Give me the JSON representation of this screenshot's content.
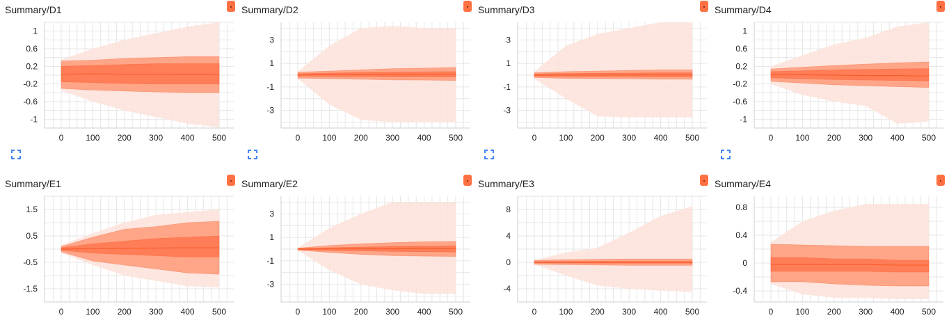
{
  "colors": {
    "accent": "#ff7043",
    "band_outer": "#fde3dc",
    "band_mid": "#ff9a7a",
    "band_inner": "#ff7a52",
    "line": "#f4511e",
    "grid": "#e6e6e6",
    "fit_icon": "#4285f4"
  },
  "icons": {
    "expand": "expand-icon",
    "fit": "fit-domain-icon"
  },
  "cards": [
    {
      "title": "Summary/D1",
      "yticks": [
        "1",
        "0.6",
        "0.2",
        "-0.2",
        "-0.6",
        "-1"
      ],
      "xticks": [
        "0",
        "100",
        "200",
        "300",
        "400",
        "500"
      ],
      "show_fit_icon": true
    },
    {
      "title": "Summary/D2",
      "yticks": [
        "3",
        "1",
        "-1",
        "-3"
      ],
      "xticks": [
        "0",
        "100",
        "200",
        "300",
        "400",
        "500"
      ],
      "show_fit_icon": true
    },
    {
      "title": "Summary/D3",
      "yticks": [
        "3",
        "1",
        "-1",
        "-3"
      ],
      "xticks": [
        "0",
        "100",
        "200",
        "300",
        "400",
        "500"
      ],
      "show_fit_icon": true
    },
    {
      "title": "Summary/D4",
      "yticks": [
        "1",
        "0.6",
        "0.2",
        "-0.2",
        "-0.6",
        "-1"
      ],
      "xticks": [
        "0",
        "100",
        "200",
        "300",
        "400",
        "500"
      ],
      "show_fit_icon": true
    },
    {
      "title": "Summary/E1",
      "yticks": [
        "1.5",
        "0.5",
        "-0.5",
        "-1.5"
      ],
      "xticks": [
        "0",
        "100",
        "200",
        "300",
        "400",
        "500"
      ],
      "show_fit_icon": false
    },
    {
      "title": "Summary/E2",
      "yticks": [
        "3",
        "1",
        "-1",
        "-3"
      ],
      "xticks": [
        "0",
        "100",
        "200",
        "300",
        "400",
        "500"
      ],
      "show_fit_icon": false
    },
    {
      "title": "Summary/E3",
      "yticks": [
        "8",
        "4",
        "0",
        "-4"
      ],
      "xticks": [
        "0",
        "100",
        "200",
        "300",
        "400",
        "500"
      ],
      "show_fit_icon": false
    },
    {
      "title": "Summary/E4",
      "yticks": [
        "0.8",
        "0.4",
        "0",
        "-0.4"
      ],
      "xticks": [
        "0",
        "100",
        "200",
        "300",
        "400",
        "500"
      ],
      "show_fit_icon": false
    }
  ],
  "chart_data": [
    {
      "type": "area",
      "title": "Summary/D1",
      "x": [
        0,
        100,
        200,
        300,
        400,
        500
      ],
      "ylim": [
        -1.2,
        1.2
      ],
      "bands": [
        {
          "name": "",
          "upper": [
            0.35,
            0.6,
            0.8,
            0.95,
            1.1,
            1.2
          ],
          "lower": [
            -0.35,
            -0.6,
            -0.8,
            -0.95,
            -1.1,
            -1.18
          ]
        },
        {
          "name": "",
          "upper": [
            0.32,
            0.34,
            0.38,
            0.4,
            0.42,
            0.42
          ],
          "lower": [
            -0.3,
            -0.34,
            -0.36,
            -0.38,
            -0.4,
            -0.4
          ]
        },
        {
          "name": "",
          "upper": [
            0.2,
            0.22,
            0.24,
            0.26,
            0.26,
            0.26
          ],
          "lower": [
            -0.15,
            -0.17,
            -0.19,
            -0.2,
            -0.2,
            -0.2
          ]
        }
      ],
      "median": [
        0.02,
        0.03,
        0.02,
        0.02,
        0.01,
        0.02
      ]
    },
    {
      "type": "area",
      "title": "Summary/D2",
      "x": [
        0,
        100,
        200,
        300,
        400,
        500
      ],
      "ylim": [
        -4.5,
        4.5
      ],
      "bands": [
        {
          "name": "",
          "upper": [
            0.3,
            2.5,
            4.0,
            4.2,
            4.0,
            4.0
          ],
          "lower": [
            -0.3,
            -2.5,
            -3.8,
            -4.0,
            -4.0,
            -4.0
          ]
        },
        {
          "name": "",
          "upper": [
            0.25,
            0.35,
            0.45,
            0.55,
            0.6,
            0.65
          ],
          "lower": [
            -0.25,
            -0.3,
            -0.35,
            -0.4,
            -0.42,
            -0.45
          ]
        },
        {
          "name": "",
          "upper": [
            0.12,
            0.18,
            0.22,
            0.25,
            0.28,
            0.3
          ],
          "lower": [
            -0.08,
            -0.1,
            -0.12,
            -0.13,
            -0.14,
            -0.15
          ]
        }
      ],
      "median": [
        0.02,
        0.04,
        0.05,
        0.06,
        0.07,
        0.08
      ]
    },
    {
      "type": "area",
      "title": "Summary/D3",
      "x": [
        0,
        100,
        200,
        300,
        400,
        500
      ],
      "ylim": [
        -4.5,
        4.5
      ],
      "bands": [
        {
          "name": "",
          "upper": [
            0.3,
            2.5,
            3.5,
            4.0,
            4.5,
            4.5
          ],
          "lower": [
            -0.3,
            -2.0,
            -3.5,
            -3.6,
            -3.6,
            -3.6
          ]
        },
        {
          "name": "",
          "upper": [
            0.2,
            0.3,
            0.35,
            0.4,
            0.45,
            0.45
          ],
          "lower": [
            -0.2,
            -0.28,
            -0.3,
            -0.32,
            -0.35,
            -0.35
          ]
        },
        {
          "name": "",
          "upper": [
            0.1,
            0.14,
            0.16,
            0.18,
            0.2,
            0.2
          ],
          "lower": [
            -0.08,
            -0.1,
            -0.12,
            -0.12,
            -0.13,
            -0.13
          ]
        }
      ],
      "median": [
        0.0,
        0.01,
        0.01,
        0.02,
        0.02,
        0.02
      ]
    },
    {
      "type": "area",
      "title": "Summary/D4",
      "x": [
        0,
        100,
        200,
        300,
        400,
        500
      ],
      "ylim": [
        -1.2,
        1.2
      ],
      "bands": [
        {
          "name": "",
          "upper": [
            0.2,
            0.45,
            0.7,
            0.85,
            1.1,
            1.2
          ],
          "lower": [
            -0.2,
            -0.45,
            -0.6,
            -0.7,
            -1.1,
            -1.05
          ]
        },
        {
          "name": "",
          "upper": [
            0.14,
            0.18,
            0.22,
            0.25,
            0.28,
            0.3
          ],
          "lower": [
            -0.14,
            -0.18,
            -0.22,
            -0.24,
            -0.26,
            -0.28
          ]
        },
        {
          "name": "",
          "upper": [
            0.08,
            0.1,
            0.12,
            0.13,
            0.14,
            0.15
          ],
          "lower": [
            -0.06,
            -0.08,
            -0.1,
            -0.11,
            -0.12,
            -0.13
          ]
        }
      ],
      "median": [
        0.02,
        0.01,
        0.0,
        -0.01,
        -0.01,
        -0.02
      ]
    },
    {
      "type": "area",
      "title": "Summary/E1",
      "x": [
        0,
        100,
        200,
        300,
        400,
        500
      ],
      "ylim": [
        -2.0,
        2.0
      ],
      "bands": [
        {
          "name": "",
          "upper": [
            0.15,
            0.6,
            1.0,
            1.3,
            1.4,
            1.5
          ],
          "lower": [
            -0.15,
            -0.6,
            -1.0,
            -1.2,
            -1.4,
            -1.45
          ]
        },
        {
          "name": "",
          "upper": [
            0.1,
            0.45,
            0.75,
            0.85,
            1.0,
            1.05
          ],
          "lower": [
            -0.1,
            -0.45,
            -0.6,
            -0.75,
            -0.9,
            -0.95
          ]
        },
        {
          "name": "",
          "upper": [
            0.05,
            0.2,
            0.3,
            0.4,
            0.45,
            0.5
          ],
          "lower": [
            -0.05,
            -0.15,
            -0.2,
            -0.25,
            -0.3,
            -0.3
          ]
        }
      ],
      "median": [
        0.0,
        0.02,
        0.03,
        0.04,
        0.05,
        0.05
      ]
    },
    {
      "type": "area",
      "title": "Summary/E2",
      "x": [
        0,
        100,
        200,
        300,
        400,
        500
      ],
      "ylim": [
        -4.5,
        4.5
      ],
      "bands": [
        {
          "name": "",
          "upper": [
            0.1,
            1.8,
            3.0,
            4.0,
            4.0,
            4.0
          ],
          "lower": [
            -0.1,
            -1.8,
            -3.0,
            -3.5,
            -3.8,
            -3.8
          ]
        },
        {
          "name": "",
          "upper": [
            0.08,
            0.3,
            0.45,
            0.55,
            0.62,
            0.65
          ],
          "lower": [
            -0.08,
            -0.28,
            -0.45,
            -0.55,
            -0.6,
            -0.62
          ]
        },
        {
          "name": "",
          "upper": [
            0.04,
            0.12,
            0.18,
            0.22,
            0.25,
            0.28
          ],
          "lower": [
            -0.04,
            -0.1,
            -0.15,
            -0.2,
            -0.22,
            -0.25
          ]
        }
      ],
      "median": [
        0.0,
        0.02,
        0.03,
        0.03,
        0.04,
        0.04
      ]
    },
    {
      "type": "area",
      "title": "Summary/E3",
      "x": [
        0,
        100,
        200,
        300,
        400,
        500
      ],
      "ylim": [
        -6.0,
        10.0
      ],
      "bands": [
        {
          "name": "",
          "upper": [
            0.3,
            1.5,
            2.2,
            4.5,
            7.0,
            8.5
          ],
          "lower": [
            -0.3,
            -2.0,
            -3.5,
            -4.0,
            -4.3,
            -4.5
          ]
        },
        {
          "name": "",
          "upper": [
            0.3,
            0.4,
            0.45,
            0.5,
            0.5,
            0.5
          ],
          "lower": [
            -0.3,
            -0.35,
            -0.4,
            -0.45,
            -0.45,
            -0.45
          ]
        },
        {
          "name": "",
          "upper": [
            0.1,
            0.12,
            0.14,
            0.15,
            0.15,
            0.15
          ],
          "lower": [
            -0.1,
            -0.12,
            -0.13,
            -0.14,
            -0.14,
            -0.14
          ]
        }
      ],
      "median": [
        0.0,
        0.0,
        0.0,
        0.0,
        0.0,
        0.0
      ]
    },
    {
      "type": "area",
      "title": "Summary/E4",
      "x": [
        0,
        100,
        200,
        300,
        400,
        500
      ],
      "ylim": [
        -0.56,
        0.96
      ],
      "bands": [
        {
          "name": "",
          "upper": [
            0.3,
            0.6,
            0.75,
            0.85,
            0.85,
            0.85
          ],
          "lower": [
            -0.3,
            -0.45,
            -0.5,
            -0.5,
            -0.52,
            -0.52
          ]
        },
        {
          "name": "",
          "upper": [
            0.27,
            0.26,
            0.25,
            0.24,
            0.24,
            0.24
          ],
          "lower": [
            -0.27,
            -0.27,
            -0.3,
            -0.32,
            -0.33,
            -0.33
          ]
        },
        {
          "name": "",
          "upper": [
            0.08,
            0.08,
            0.06,
            0.06,
            0.04,
            0.04
          ],
          "lower": [
            -0.12,
            -0.12,
            -0.12,
            -0.12,
            -0.13,
            -0.13
          ]
        }
      ],
      "median": [
        -0.02,
        -0.02,
        -0.02,
        -0.02,
        -0.03,
        -0.03
      ]
    }
  ]
}
